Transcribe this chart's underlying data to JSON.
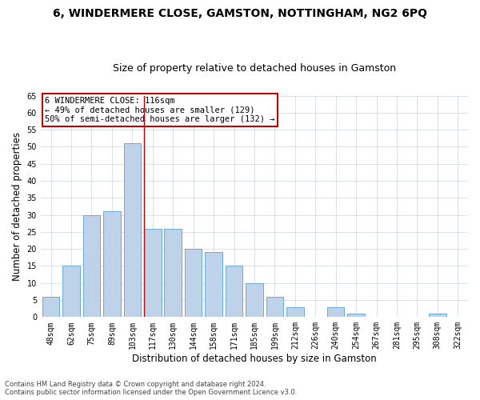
{
  "title1": "6, WINDERMERE CLOSE, GAMSTON, NOTTINGHAM, NG2 6PQ",
  "title2": "Size of property relative to detached houses in Gamston",
  "xlabel": "Distribution of detached houses by size in Gamston",
  "ylabel": "Number of detached properties",
  "bar_labels": [
    "48sqm",
    "62sqm",
    "75sqm",
    "89sqm",
    "103sqm",
    "117sqm",
    "130sqm",
    "144sqm",
    "158sqm",
    "171sqm",
    "185sqm",
    "199sqm",
    "212sqm",
    "226sqm",
    "240sqm",
    "254sqm",
    "267sqm",
    "281sqm",
    "295sqm",
    "308sqm",
    "322sqm"
  ],
  "bar_values": [
    6,
    15,
    30,
    31,
    51,
    26,
    26,
    20,
    19,
    15,
    10,
    6,
    3,
    0,
    3,
    1,
    0,
    0,
    0,
    1,
    0
  ],
  "bar_color": "#bed3ea",
  "bar_edge_color": "#6aabd4",
  "vline_index": 5,
  "vline_color": "#c00000",
  "annotation_text": "6 WINDERMERE CLOSE: 116sqm\n← 49% of detached houses are smaller (129)\n50% of semi-detached houses are larger (132) →",
  "annotation_box_color": "#ffffff",
  "annotation_box_edge": "#c00000",
  "ylim": [
    0,
    65
  ],
  "yticks": [
    0,
    5,
    10,
    15,
    20,
    25,
    30,
    35,
    40,
    45,
    50,
    55,
    60,
    65
  ],
  "footer1": "Contains HM Land Registry data © Crown copyright and database right 2024.",
  "footer2": "Contains public sector information licensed under the Open Government Licence v3.0.",
  "bg_color": "#ffffff",
  "grid_color": "#c8d4e4",
  "title1_fontsize": 10,
  "title2_fontsize": 9,
  "annot_fontsize": 7.5,
  "tick_fontsize": 7,
  "xlabel_fontsize": 8.5,
  "ylabel_fontsize": 8.5,
  "footer_fontsize": 6
}
